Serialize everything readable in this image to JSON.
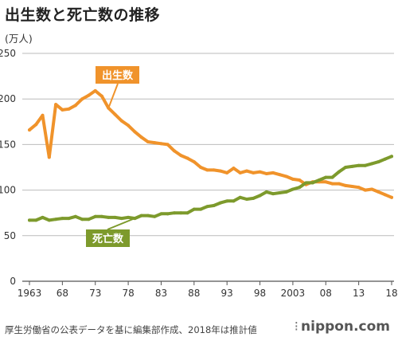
{
  "header": {
    "title": "出生数と死亡数の推移",
    "unit_label": "(万人)"
  },
  "footer": {
    "source": "厚生労働省の公表データを基に編集部作成、2018年は推計値",
    "brand": "nippon.com"
  },
  "chart_data": {
    "type": "line",
    "title": "出生数と死亡数の推移",
    "ylabel": "(万人)",
    "xlabel": "",
    "ylim": [
      0,
      250
    ],
    "xlim": [
      1963,
      2018
    ],
    "yticks": [
      0,
      50,
      100,
      150,
      200,
      250
    ],
    "xtick_labels": [
      {
        "year": 1963,
        "label": "1963"
      },
      {
        "year": 1968,
        "label": "68"
      },
      {
        "year": 1973,
        "label": "73"
      },
      {
        "year": 1978,
        "label": "78"
      },
      {
        "year": 1983,
        "label": "83"
      },
      {
        "year": 1988,
        "label": "88"
      },
      {
        "year": 1993,
        "label": "93"
      },
      {
        "year": 1998,
        "label": "98"
      },
      {
        "year": 2003,
        "label": "2003"
      },
      {
        "year": 2008,
        "label": "08"
      },
      {
        "year": 2013,
        "label": "13"
      },
      {
        "year": 2018,
        "label": "18"
      }
    ],
    "grid": "horizontal",
    "x": [
      1963,
      1964,
      1965,
      1966,
      1967,
      1968,
      1969,
      1970,
      1971,
      1972,
      1973,
      1974,
      1975,
      1976,
      1977,
      1978,
      1979,
      1980,
      1981,
      1982,
      1983,
      1984,
      1985,
      1986,
      1987,
      1988,
      1989,
      1990,
      1991,
      1992,
      1993,
      1994,
      1995,
      1996,
      1997,
      1998,
      1999,
      2000,
      2001,
      2002,
      2003,
      2004,
      2005,
      2006,
      2007,
      2008,
      2009,
      2010,
      2011,
      2012,
      2013,
      2014,
      2015,
      2016,
      2017,
      2018
    ],
    "series": [
      {
        "name": "出生数",
        "color": "#f0932b",
        "values": [
          166,
          172,
          182,
          136,
          194,
          188,
          189,
          193,
          200,
          204,
          209,
          203,
          190,
          183,
          176,
          171,
          164,
          158,
          153,
          152,
          151,
          150,
          143,
          138,
          135,
          131,
          125,
          122,
          122,
          121,
          119,
          124,
          119,
          121,
          119,
          120,
          118,
          119,
          117,
          115,
          112,
          111,
          106,
          109,
          109,
          109,
          107,
          107,
          105,
          104,
          103,
          100,
          101,
          98,
          95,
          92
        ]
      },
      {
        "name": "死亡数",
        "color": "#7d9a2c",
        "values": [
          67,
          67,
          70,
          67,
          68,
          69,
          69,
          71,
          68,
          68,
          71,
          71,
          70,
          70,
          69,
          70,
          69,
          72,
          72,
          71,
          74,
          74,
          75,
          75,
          75,
          79,
          79,
          82,
          83,
          86,
          88,
          88,
          92,
          90,
          91,
          94,
          98,
          96,
          97,
          98,
          101,
          103,
          108,
          108,
          111,
          114,
          114,
          120,
          125,
          126,
          127,
          127,
          129,
          131,
          134,
          137
        ]
      }
    ],
    "annotations": [
      {
        "text": "出生数",
        "series": "出生数"
      },
      {
        "text": "死亡数",
        "series": "死亡数"
      }
    ]
  }
}
